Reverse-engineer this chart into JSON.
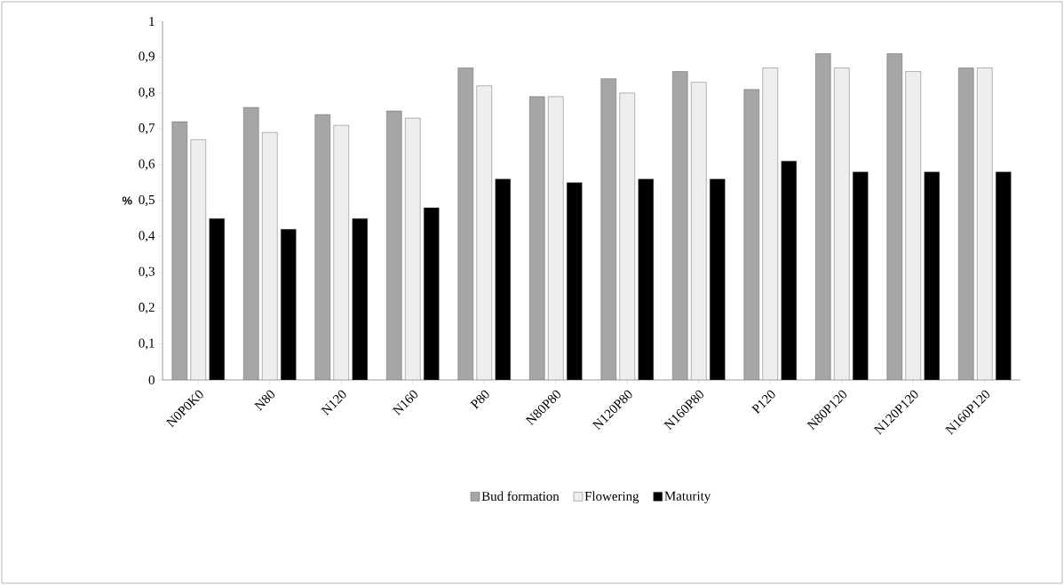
{
  "chart_data": {
    "type": "bar",
    "ylabel": "%",
    "categories": [
      "N0P0K0",
      "N80",
      "N120",
      "N160",
      "P80",
      "N80P80",
      "N120P80",
      "N160P80",
      "P120",
      "N80P120",
      "N120P120",
      "N160P120"
    ],
    "series": [
      {
        "name": "Bud formation",
        "color": "#a6a6a6",
        "values": [
          0.72,
          0.76,
          0.74,
          0.75,
          0.87,
          0.79,
          0.84,
          0.86,
          0.81,
          0.91,
          0.91,
          0.87
        ]
      },
      {
        "name": "Flowering",
        "color": "#eeeeee",
        "values": [
          0.67,
          0.69,
          0.71,
          0.73,
          0.82,
          0.79,
          0.8,
          0.83,
          0.87,
          0.87,
          0.86,
          0.87
        ]
      },
      {
        "name": "Maturity",
        "color": "#000000",
        "values": [
          0.45,
          0.42,
          0.45,
          0.48,
          0.56,
          0.55,
          0.56,
          0.56,
          0.61,
          0.58,
          0.58,
          0.58
        ]
      }
    ],
    "ylim": [
      0,
      1
    ],
    "yticks": [
      0,
      {
        "value": 0.1,
        "label": "0,1"
      },
      {
        "value": 0.2,
        "label": "0,2"
      },
      {
        "value": 0.3,
        "label": "0,3"
      },
      {
        "value": 0.4,
        "label": "0,4"
      },
      {
        "value": 0.5,
        "label": "0,5"
      },
      {
        "value": 0.6,
        "label": "0,6"
      },
      {
        "value": 0.7,
        "label": "0,7"
      },
      {
        "value": 0.8,
        "label": "0,8"
      },
      {
        "value": 0.9,
        "label": "0,9"
      },
      1
    ],
    "grid": false,
    "legend": "bottom"
  }
}
